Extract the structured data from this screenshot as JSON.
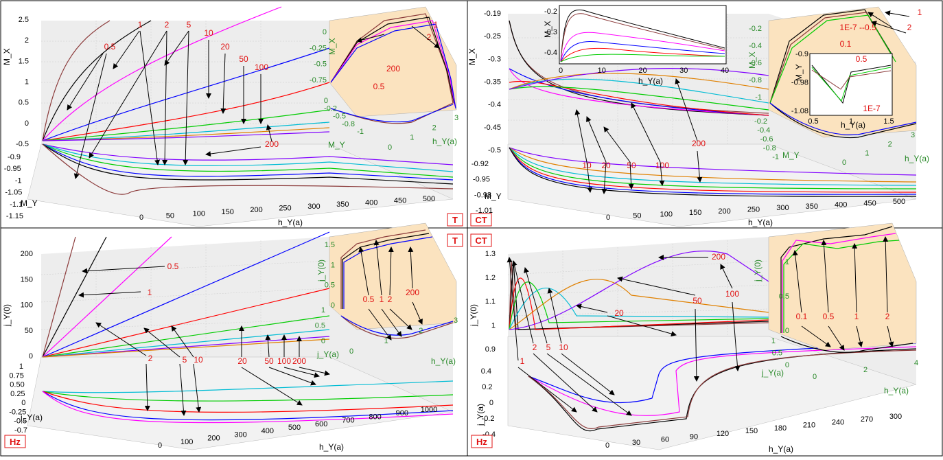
{
  "panels": [
    {
      "id": "tl",
      "tag": "T",
      "z_label": "M_X",
      "y_label": "M_Y",
      "x_label": "h_Y(a)",
      "z_ticks": [
        "2.5",
        "2",
        "1.5",
        "1",
        "0.5",
        "0",
        "-0.5"
      ],
      "y_ticks": [
        "-0.9",
        "-0.95",
        "-1",
        "-1.05",
        "-1.1",
        "-1.15"
      ],
      "x_ticks": [
        "0",
        "50",
        "100",
        "150",
        "200",
        "250",
        "300",
        "350",
        "400",
        "450",
        "500"
      ],
      "labels": [
        "0.5",
        "1",
        "2",
        "5",
        "10",
        "20",
        "50",
        "100",
        "200"
      ],
      "inset": {
        "z_label": "M_X",
        "y_label": "M_Y",
        "x_label": "h_Y(a)",
        "z_ticks": [
          "0",
          "-0.25",
          "-0.5",
          "-0.75"
        ],
        "z2_ticks": [
          "0",
          "-0.2",
          "-0.5",
          "-0.8",
          "-1"
        ],
        "x_ticks": [
          "0",
          "1",
          "2",
          "3"
        ],
        "labels": [
          "1",
          "2",
          "0.5",
          "200"
        ]
      }
    },
    {
      "id": "tr",
      "tag": "CT",
      "z_label": "M_X",
      "y_label": "M_Y",
      "x_label": "h_Y(a)",
      "z_ticks": [
        "-0.19",
        "-0.25",
        "-0.3",
        "-0.35",
        "-0.4",
        "-0.45",
        "-0.5"
      ],
      "y_ticks": [
        "-0.92",
        "-0.95",
        "-0.98",
        "-1.01"
      ],
      "x_ticks": [
        "0",
        "50",
        "100",
        "150",
        "200",
        "250",
        "300",
        "350",
        "400",
        "450",
        "500"
      ],
      "labels": [
        "10",
        "20",
        "50",
        "100",
        "200"
      ],
      "top_inset": {
        "y_label": "M_X",
        "x_label": "h_Y(a)",
        "y_ticks": [
          "-0.2",
          "-0.3",
          "-0.4"
        ],
        "x_ticks": [
          "0",
          "10",
          "20",
          "30",
          "40"
        ]
      },
      "inset": {
        "z_label": "M_X",
        "y_label": "M_Y",
        "x_label": "h_Y(a)",
        "z_ticks": [
          "-0.2",
          "-0.4",
          "-0.6",
          "-0.8",
          "-1"
        ],
        "z2_ticks": [
          "-0.2",
          "-0.4",
          "-0.6",
          "-0.8",
          "-1"
        ],
        "x_ticks": [
          "0",
          "1",
          "2",
          "3"
        ],
        "labels": [
          "1E-7 --0.5",
          "1",
          "2"
        ],
        "zoom": {
          "y_label": "M_Y",
          "x_label": "h_Y(a)",
          "y_ticks": [
            "-0.9",
            "-0.98",
            "-1.08"
          ],
          "x_ticks": [
            "0.5",
            "1",
            "1.5"
          ],
          "labels": [
            "0.1",
            "0.5",
            "1E-7"
          ]
        }
      }
    },
    {
      "id": "bl",
      "tag": "Hz",
      "tag2": "T",
      "z_label": "j_Y(0)",
      "y_label": "j_Y(a)",
      "x_label": "h_Y(a)",
      "z_ticks": [
        "200",
        "150",
        "100",
        "50",
        "0"
      ],
      "y_ticks": [
        "1",
        "0.75",
        "0.50",
        "0.25",
        "0",
        "-0.25",
        "-0.5",
        "-0.7"
      ],
      "x_ticks": [
        "0",
        "100",
        "200",
        "300",
        "400",
        "500",
        "600",
        "700",
        "800",
        "900",
        "1000"
      ],
      "labels": [
        "0.5",
        "1",
        "2",
        "5",
        "10",
        "20",
        "50",
        "100",
        "200"
      ],
      "inset": {
        "z_label": "j_Y(0)",
        "y_label": "j_Y(a)",
        "x_label": "h_Y(a)",
        "z_ticks": [
          "1.5",
          "1",
          "0.5",
          "0"
        ],
        "z2_ticks": [
          "1",
          "0.5",
          "0"
        ],
        "x_ticks": [
          "0",
          "1",
          "2",
          "3"
        ],
        "labels": [
          "0.5",
          "1",
          "2",
          "200"
        ]
      }
    },
    {
      "id": "br",
      "tag": "Hz",
      "tag2": "CT",
      "z_label": "j_Y(0)",
      "y_label": "j_Y(a)",
      "x_label": "h_Y(a)",
      "z_ticks": [
        "1.3",
        "1.2",
        "1.1",
        "1",
        "0.9"
      ],
      "y_ticks": [
        "0.4",
        "0.2",
        "0",
        "-0.2",
        "-0.4"
      ],
      "x_ticks": [
        "0",
        "30",
        "60",
        "90",
        "120",
        "150",
        "180",
        "210",
        "240",
        "270",
        "300"
      ],
      "labels": [
        "200",
        "50",
        "100",
        "20",
        "1",
        "2",
        "5",
        "10"
      ],
      "inset": {
        "z_label": "j_Y(0)",
        "y_label": "j_Y(a)",
        "x_label": "h_Y(a)",
        "z_ticks": [
          "1",
          "0.5",
          "0"
        ],
        "z2_ticks": [
          "1",
          "0.5",
          "0"
        ],
        "x_ticks": [
          "0",
          "2",
          "4"
        ],
        "labels": [
          "0.1",
          "0.5",
          "1",
          "2"
        ]
      }
    }
  ],
  "chart_data": {
    "type": "line",
    "series_colors": [
      "#8b3a3a",
      "#000000",
      "#ff00ff",
      "#0000ff",
      "#ff0000",
      "#00cc00",
      "#00bcd4",
      "#e08000",
      "#8000ff"
    ],
    "accent": "#e01010",
    "inset_bg": "#fbe3bf"
  }
}
